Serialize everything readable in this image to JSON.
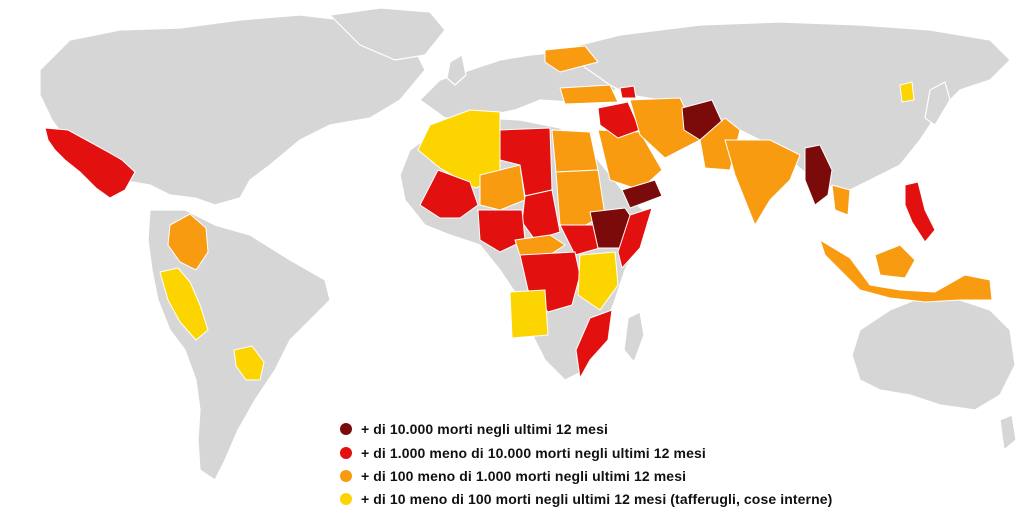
{
  "legend": {
    "items": [
      {
        "level": "high",
        "color": "#7b0a0a",
        "label": "+ di 10.000 morti negli ultimi 12 mesi"
      },
      {
        "level": "medium",
        "color": "#e31010",
        "label": "+ di 1.000 meno di 10.000 morti negli ultimi 12 mesi"
      },
      {
        "level": "low",
        "color": "#f99b10",
        "label": "+ di 100 meno di 1.000 morti negli ultimi 12 mesi"
      },
      {
        "level": "very-low",
        "color": "#fcd500",
        "label": "+ di 10 meno di 100 morti negli ultimi 12 mesi (tafferugli, cose interne)"
      }
    ]
  },
  "map": {
    "land_color": "#d6d6d6",
    "background_color": "#ffffff"
  }
}
